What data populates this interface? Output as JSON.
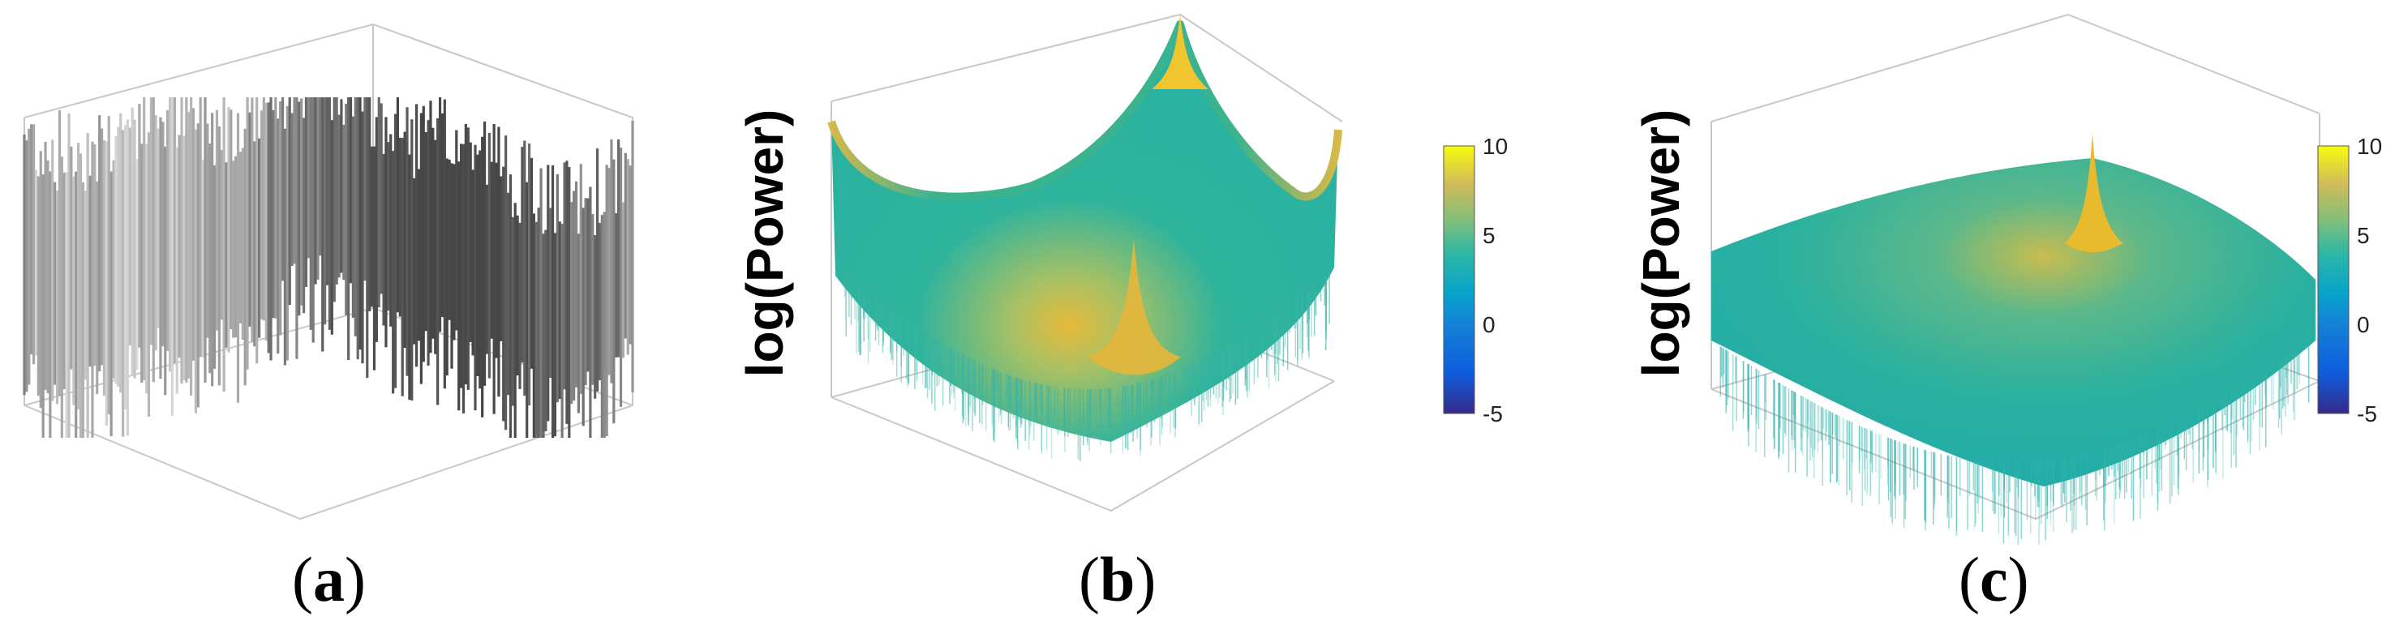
{
  "figure": {
    "captions": [
      {
        "open": "(",
        "letter": "a",
        "close": ")"
      },
      {
        "open": "(",
        "letter": "b",
        "close": ")"
      },
      {
        "open": "(",
        "letter": "c",
        "close": ")"
      }
    ]
  },
  "chart_data": [
    {
      "type": "surface",
      "panel": "a",
      "colormap": "gray",
      "description_values": {
        "surface": "rough terrain height map"
      },
      "grid": false,
      "xlabel": "",
      "ylabel": "",
      "zlabel": ""
    },
    {
      "type": "surface",
      "panel": "b",
      "colormap": "parula",
      "zlabel": "log(Power)",
      "clim": [
        -5,
        10
      ],
      "colorbar_ticks": [
        "10",
        "5",
        "0",
        "-5"
      ],
      "colorbar_tick_values": [
        10,
        5,
        0,
        -5
      ],
      "peaks": [
        "center spike",
        "corner spikes"
      ],
      "xlabel": "",
      "ylabel": ""
    },
    {
      "type": "surface",
      "panel": "c",
      "colormap": "parula",
      "zlabel": "log(Power)",
      "clim": [
        -5,
        10
      ],
      "colorbar_ticks": [
        "10",
        "5",
        "0",
        "-5"
      ],
      "colorbar_tick_values": [
        10,
        5,
        0,
        -5
      ],
      "peaks": [
        "center spike"
      ],
      "xlabel": "",
      "ylabel": ""
    }
  ],
  "colors": {
    "axis_box": "#c8c8c8",
    "parula_low": "#352a87",
    "parula_mid": "#14b1b5",
    "parula_high": "#f9fb0e"
  }
}
